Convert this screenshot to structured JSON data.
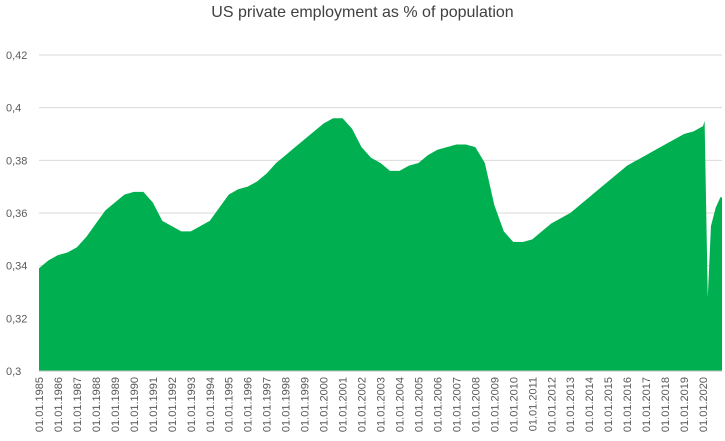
{
  "chart_data": {
    "type": "area",
    "title": "US private employment as % of population",
    "xlabel": "",
    "ylabel": "",
    "ylim": [
      0.3,
      0.42
    ],
    "yticks": [
      "0,3",
      "0,32",
      "0,34",
      "0,36",
      "0,38",
      "0,4",
      "0,42"
    ],
    "xlim": [
      "1985-01",
      "2020-12"
    ],
    "xticks": [
      "01.01.1985",
      "01.01.1986",
      "01.01.1987",
      "01.01.1988",
      "01.01.1989",
      "01.01.1990",
      "01.01.1991",
      "01.01.1992",
      "01.01.1993",
      "01.01.1994",
      "01.01.1995",
      "01.01.1996",
      "01.01.1997",
      "01.01.1998",
      "01.01.1999",
      "01.01.2000",
      "01.01.2001",
      "01.01.2002",
      "01.01.2003",
      "01.01.2004",
      "01.01.2005",
      "01.01.2006",
      "01.01.2007",
      "01.01.2008",
      "01.01.2009",
      "01.01.2010",
      "01.01.2011",
      "01.01.2012",
      "01.01.2013",
      "01.01.2014",
      "01.01.2015",
      "01.01.2016",
      "01.01.2017",
      "01.01.2018",
      "01.01.2019",
      "01.01.2020"
    ],
    "grid": true,
    "legend": "none",
    "color": "#00b050",
    "series": [
      {
        "x": [
          "1985-01",
          "1985-07",
          "1986-01",
          "1986-07",
          "1987-01",
          "1987-07",
          "1988-01",
          "1988-07",
          "1989-01",
          "1989-07",
          "1990-01",
          "1990-07",
          "1991-01",
          "1991-07",
          "1992-01",
          "1992-07",
          "1993-01",
          "1993-07",
          "1994-01",
          "1994-07",
          "1995-01",
          "1995-07",
          "1996-01",
          "1996-07",
          "1997-01",
          "1997-07",
          "1998-01",
          "1998-07",
          "1999-01",
          "1999-07",
          "2000-01",
          "2000-07",
          "2001-01",
          "2001-07",
          "2002-01",
          "2002-07",
          "2003-01",
          "2003-07",
          "2004-01",
          "2004-07",
          "2005-01",
          "2005-07",
          "2006-01",
          "2006-07",
          "2007-01",
          "2007-07",
          "2008-01",
          "2008-07",
          "2009-01",
          "2009-07",
          "2010-01",
          "2010-07",
          "2011-01",
          "2011-07",
          "2012-01",
          "2012-07",
          "2013-01",
          "2013-07",
          "2014-01",
          "2014-07",
          "2015-01",
          "2015-07",
          "2016-01",
          "2016-07",
          "2017-01",
          "2017-07",
          "2018-01",
          "2018-07",
          "2019-01",
          "2019-07",
          "2020-01",
          "2020-02",
          "2020-04",
          "2020-06",
          "2020-09",
          "2020-12"
        ],
        "values": [
          0.339,
          0.342,
          0.344,
          0.345,
          0.347,
          0.351,
          0.356,
          0.361,
          0.364,
          0.367,
          0.368,
          0.368,
          0.364,
          0.357,
          0.355,
          0.353,
          0.353,
          0.355,
          0.357,
          0.362,
          0.367,
          0.369,
          0.37,
          0.372,
          0.375,
          0.379,
          0.382,
          0.385,
          0.388,
          0.391,
          0.394,
          0.396,
          0.396,
          0.392,
          0.385,
          0.381,
          0.379,
          0.376,
          0.376,
          0.378,
          0.379,
          0.382,
          0.384,
          0.385,
          0.386,
          0.386,
          0.385,
          0.379,
          0.363,
          0.353,
          0.349,
          0.349,
          0.35,
          0.353,
          0.356,
          0.358,
          0.36,
          0.363,
          0.366,
          0.369,
          0.372,
          0.375,
          0.378,
          0.38,
          0.382,
          0.384,
          0.386,
          0.388,
          0.39,
          0.391,
          0.393,
          0.395,
          0.328,
          0.355,
          0.362,
          0.366
        ]
      }
    ]
  }
}
